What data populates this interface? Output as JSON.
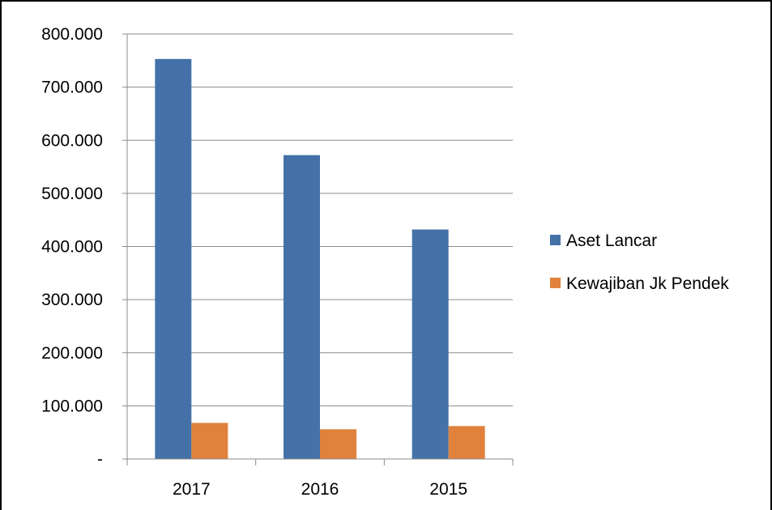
{
  "chart_data": {
    "type": "bar",
    "title": "",
    "xlabel": "",
    "ylabel": "",
    "categories": [
      "2017",
      "2016",
      "2015"
    ],
    "series": [
      {
        "name": "Aset Lancar",
        "color": "#4472a8",
        "values": [
          753000,
          572000,
          432000
        ]
      },
      {
        "name": "Kewajiban Jk Pendek",
        "color": "#e0823c",
        "values": [
          68000,
          56000,
          62000
        ]
      }
    ],
    "ylim": [
      0,
      800000
    ],
    "yticks": [
      {
        "value": 0,
        "label": "-"
      },
      {
        "value": 100000,
        "label": "100.000"
      },
      {
        "value": 200000,
        "label": "200.000"
      },
      {
        "value": 300000,
        "label": "300.000"
      },
      {
        "value": 400000,
        "label": "400.000"
      },
      {
        "value": 500000,
        "label": "500.000"
      },
      {
        "value": 600000,
        "label": "600.000"
      },
      {
        "value": 700000,
        "label": "700.000"
      },
      {
        "value": 800000,
        "label": "800.000"
      }
    ],
    "grid": true,
    "legend_position": "right"
  }
}
